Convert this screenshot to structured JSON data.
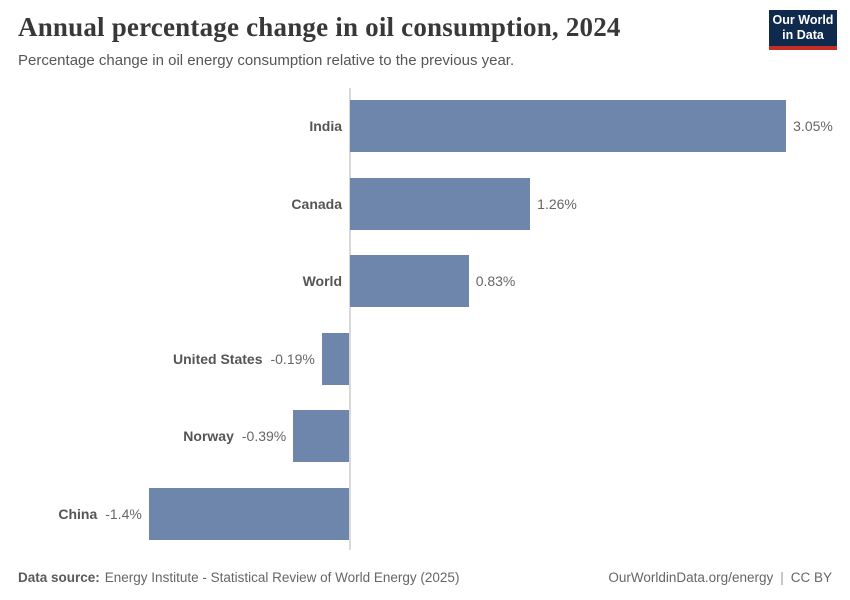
{
  "header": {
    "title": "Annual percentage change in oil consumption, 2024",
    "subtitle": "Percentage change in oil energy consumption relative to the previous year.",
    "logo": {
      "line1": "Our World",
      "line2": "in Data",
      "bg_color": "#102a4e",
      "accent_color": "#c62d26"
    }
  },
  "chart_data": {
    "type": "bar",
    "orientation": "horizontal",
    "title": "Annual percentage change in oil consumption, 2024",
    "subtitle": "Percentage change in oil energy consumption relative to the previous year.",
    "categories": [
      "India",
      "Canada",
      "World",
      "United States",
      "Norway",
      "China"
    ],
    "values": [
      3.05,
      1.26,
      0.83,
      -0.19,
      -0.39,
      -1.4
    ],
    "value_labels": [
      "3.05%",
      "1.26%",
      "0.83%",
      "-0.19%",
      "-0.39%",
      "-1.4%"
    ],
    "unit": "%",
    "xlim": [
      -1.4,
      3.05
    ],
    "bar_color": "#6e86ac",
    "axis_color": "#d9d9d9",
    "grid": false,
    "legend": "none"
  },
  "footer": {
    "source_label": "Data source:",
    "source_text": "Energy Institute - Statistical Review of World Energy (2025)",
    "url_text": "OurWorldinData.org/energy",
    "separator": "|",
    "license_text": "CC BY"
  }
}
